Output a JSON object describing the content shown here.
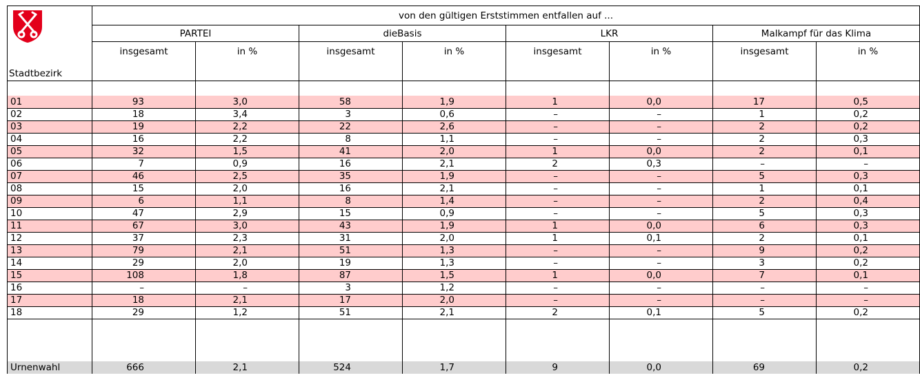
{
  "header": {
    "corner_label": "Stadtbezirk",
    "title": "von den gültigen Erststimmen entfallen auf ...",
    "parties": [
      "PARTEI",
      "dieBasis",
      "LKR",
      "Malkampf für das Klima"
    ],
    "subcolumns": [
      "insgesamt",
      "in %"
    ]
  },
  "table": {
    "rows": [
      [
        "01",
        "93",
        "3,0",
        "58",
        "1,9",
        "1",
        "0,0",
        "17",
        "0,5"
      ],
      [
        "02",
        "18",
        "3,4",
        "3",
        "0,6",
        "–",
        "–",
        "1",
        "0,2"
      ],
      [
        "03",
        "19",
        "2,2",
        "22",
        "2,6",
        "–",
        "–",
        "2",
        "0,2"
      ],
      [
        "04",
        "16",
        "2,2",
        "8",
        "1,1",
        "–",
        "–",
        "2",
        "0,3"
      ],
      [
        "05",
        "32",
        "1,5",
        "41",
        "2,0",
        "1",
        "0,0",
        "2",
        "0,1"
      ],
      [
        "06",
        "7",
        "0,9",
        "16",
        "2,1",
        "2",
        "0,3",
        "–",
        "–"
      ],
      [
        "07",
        "46",
        "2,5",
        "35",
        "1,9",
        "–",
        "–",
        "5",
        "0,3"
      ],
      [
        "08",
        "15",
        "2,0",
        "16",
        "2,1",
        "–",
        "–",
        "1",
        "0,1"
      ],
      [
        "09",
        "6",
        "1,1",
        "8",
        "1,4",
        "–",
        "–",
        "2",
        "0,4"
      ],
      [
        "10",
        "47",
        "2,9",
        "15",
        "0,9",
        "–",
        "–",
        "5",
        "0,3"
      ],
      [
        "11",
        "67",
        "3,0",
        "43",
        "1,9",
        "1",
        "0,0",
        "6",
        "0,3"
      ],
      [
        "12",
        "37",
        "2,3",
        "31",
        "2,0",
        "1",
        "0,1",
        "2",
        "0,1"
      ],
      [
        "13",
        "79",
        "2,1",
        "51",
        "1,3",
        "–",
        "–",
        "9",
        "0,2"
      ],
      [
        "14",
        "29",
        "2,0",
        "19",
        "1,3",
        "–",
        "–",
        "3",
        "0,2"
      ],
      [
        "15",
        "108",
        "1,8",
        "87",
        "1,5",
        "1",
        "0,0",
        "7",
        "0,1"
      ],
      [
        "16",
        "–",
        "–",
        "3",
        "1,2",
        "–",
        "–",
        "–",
        "–"
      ],
      [
        "17",
        "18",
        "2,1",
        "17",
        "2,0",
        "–",
        "–",
        "–",
        "–"
      ],
      [
        "18",
        "29",
        "1,2",
        "51",
        "2,1",
        "2",
        "0,1",
        "5",
        "0,2"
      ]
    ],
    "total": [
      "Urnenwahl",
      "666",
      "2,1",
      "524",
      "1,7",
      "9",
      "0,0",
      "69",
      "0,2"
    ]
  }
}
